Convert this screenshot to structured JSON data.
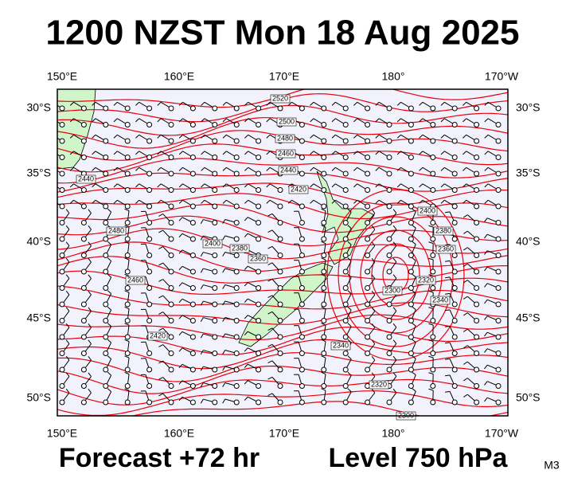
{
  "title": "1200 NZST Mon 18 Aug 2025",
  "lon_labels": [
    "150°E",
    "160°E",
    "170°E",
    "180°",
    "170°W"
  ],
  "lat_labels": [
    "30°S",
    "35°S",
    "40°S",
    "45°S",
    "50°S"
  ],
  "contour_labels": [
    "2520",
    "2500",
    "2480",
    "2460",
    "2440",
    "2420",
    "2400",
    "2380",
    "2360",
    "2340",
    "2320",
    "2300",
    "2320",
    "2340",
    "2360",
    "2440",
    "2460",
    "2420",
    "2480",
    "2400",
    "2380",
    "2300"
  ],
  "footer": {
    "forecast": "Forecast +72 hr",
    "level": "Level 750 hPa",
    "code": "M3"
  }
}
